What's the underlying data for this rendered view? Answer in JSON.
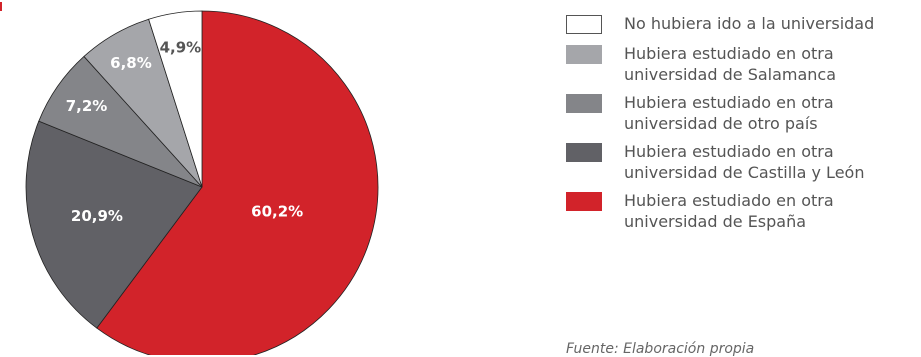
{
  "chart_data": {
    "type": "pie",
    "title": "",
    "slices": [
      {
        "label": "Hubiera estudiado en otra universidad de España",
        "value": 60.2,
        "value_label": "60,2%",
        "color": "#d2232a",
        "text_color": "#ffffff"
      },
      {
        "label": "Hubiera estudiado en otra universidad de Castilla y León",
        "value": 20.9,
        "value_label": "20,9%",
        "color": "#616166",
        "text_color": "#ffffff"
      },
      {
        "label": "Hubiera estudiado en otra universidad de otro país",
        "value": 7.2,
        "value_label": "7,2%",
        "color": "#848589",
        "text_color": "#ffffff"
      },
      {
        "label": "Hubiera estudiado en otra universidad de Salamanca",
        "value": 6.8,
        "value_label": "6,8%",
        "color": "#a5a6aa",
        "text_color": "#ffffff"
      },
      {
        "label": "No hubiera ido a la universidad",
        "value": 4.9,
        "value_label": "4,9%",
        "color": "#ffffff",
        "text_color": "#555555"
      }
    ],
    "start_angle_deg": 0,
    "direction": "clockwise"
  },
  "legend": {
    "items": [
      {
        "line1": "No hubiera ido a la universidad",
        "line2": "",
        "color": "#ffffff"
      },
      {
        "line1": "Hubiera estudiado en otra",
        "line2": "universidad de Salamanca",
        "color": "#a5a6aa"
      },
      {
        "line1": "Hubiera estudiado en otra",
        "line2": "universidad de otro país",
        "color": "#848589"
      },
      {
        "line1": "Hubiera estudiado en otra",
        "line2": "universidad de Castilla y León",
        "color": "#616166"
      },
      {
        "line1": "Hubiera estudiado en otra",
        "line2": "universidad de España",
        "color": "#d2232a"
      }
    ]
  },
  "source_note": "Fuente: Elaboración propia"
}
